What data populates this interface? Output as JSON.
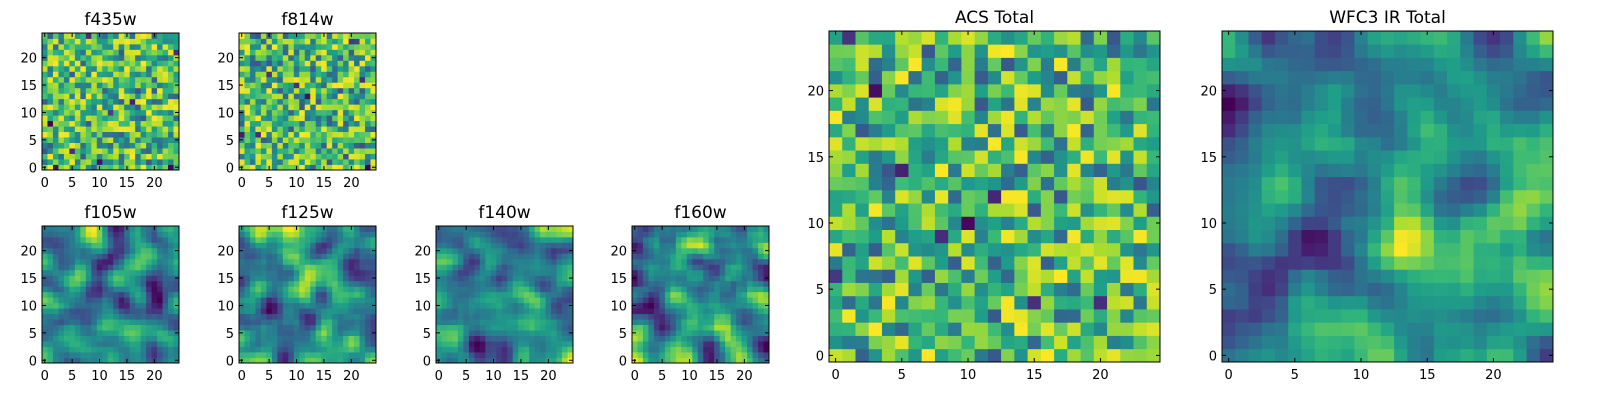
{
  "chart_data": [
    {
      "type": "heatmap",
      "title": "f435w",
      "grid_size": 25,
      "texture": "noise",
      "xticks": [
        "0",
        "5",
        "10",
        "15",
        "20"
      ],
      "yticks": [
        "0",
        "5",
        "10",
        "15",
        "20"
      ],
      "colormap": "viridis"
    },
    {
      "type": "heatmap",
      "title": "f814w",
      "grid_size": 25,
      "texture": "noise",
      "xticks": [
        "0",
        "5",
        "10",
        "15",
        "20"
      ],
      "yticks": [
        "0",
        "5",
        "10",
        "15",
        "20"
      ],
      "colormap": "viridis"
    },
    {
      "type": "heatmap",
      "title": "f105w",
      "grid_size": 25,
      "texture": "smooth",
      "xticks": [
        "0",
        "5",
        "10",
        "15",
        "20"
      ],
      "yticks": [
        "0",
        "5",
        "10",
        "15",
        "20"
      ],
      "colormap": "viridis"
    },
    {
      "type": "heatmap",
      "title": "f125w",
      "grid_size": 25,
      "texture": "smooth",
      "xticks": [
        "0",
        "5",
        "10",
        "15",
        "20"
      ],
      "yticks": [
        "0",
        "5",
        "10",
        "15",
        "20"
      ],
      "colormap": "viridis"
    },
    {
      "type": "heatmap",
      "title": "f140w",
      "grid_size": 25,
      "texture": "smooth",
      "xticks": [
        "0",
        "5",
        "10",
        "15",
        "20"
      ],
      "yticks": [
        "0",
        "5",
        "10",
        "15",
        "20"
      ],
      "colormap": "viridis"
    },
    {
      "type": "heatmap",
      "title": "f160w",
      "grid_size": 25,
      "texture": "smooth",
      "xticks": [
        "0",
        "5",
        "10",
        "15",
        "20"
      ],
      "yticks": [
        "0",
        "5",
        "10",
        "15",
        "20"
      ],
      "colormap": "viridis"
    },
    {
      "type": "heatmap",
      "title": "ACS Total",
      "grid_size": 25,
      "texture": "noise",
      "xticks": [
        "0",
        "5",
        "10",
        "15",
        "20"
      ],
      "yticks": [
        "0",
        "5",
        "10",
        "15",
        "20"
      ],
      "colormap": "viridis"
    },
    {
      "type": "heatmap",
      "title": "WFC3 IR Total",
      "grid_size": 25,
      "texture": "smooth",
      "xticks": [
        "0",
        "5",
        "10",
        "15",
        "20"
      ],
      "yticks": [
        "0",
        "5",
        "10",
        "15",
        "20"
      ],
      "colormap": "viridis"
    }
  ],
  "colors": {
    "viridis_low": "#440154",
    "viridis_mid": "#21918c",
    "viridis_high": "#fde725"
  }
}
